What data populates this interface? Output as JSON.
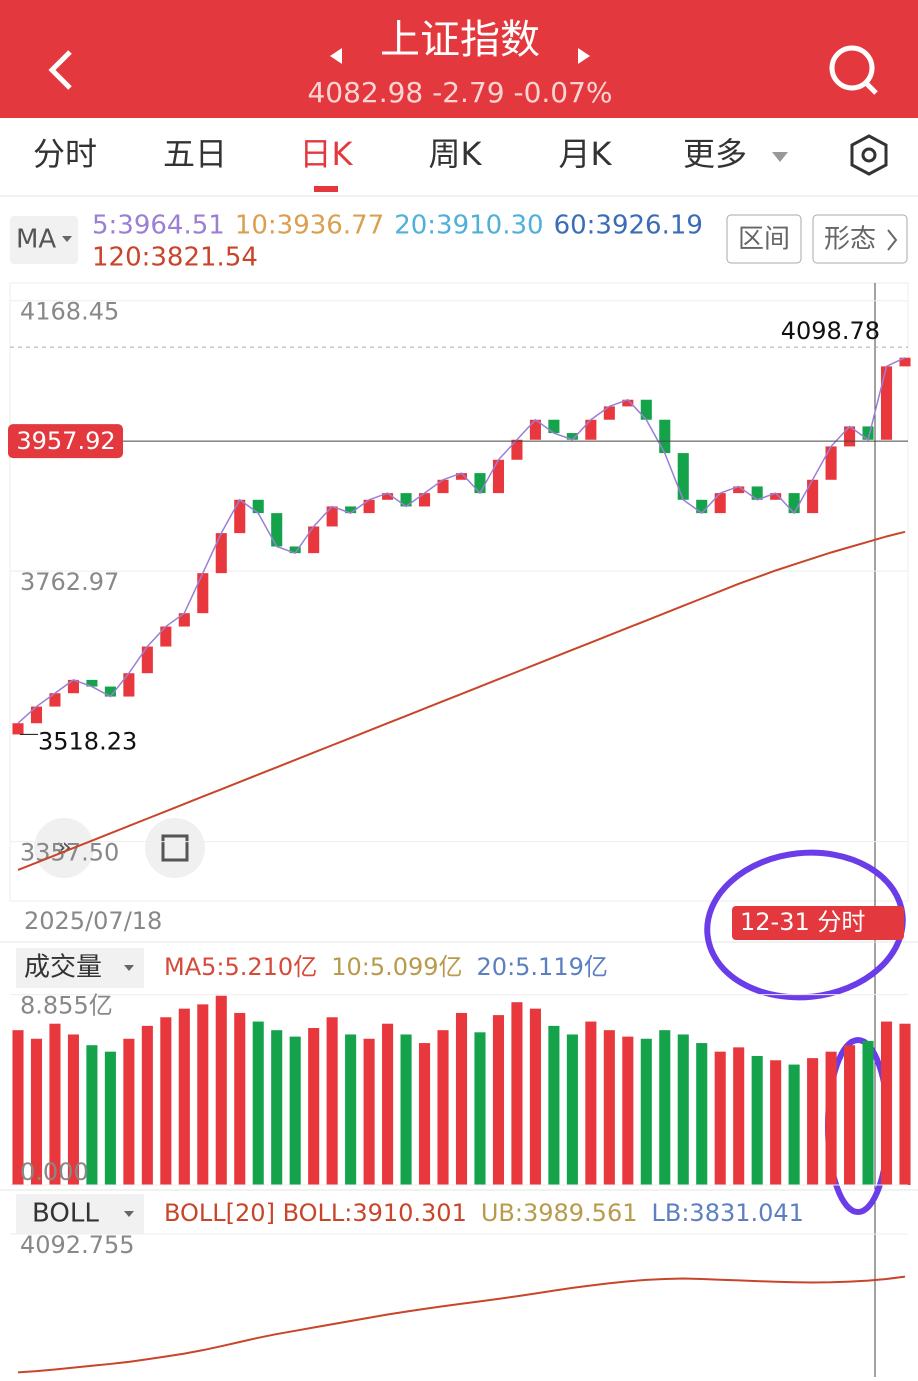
{
  "header": {
    "title": "上证指数",
    "quote": "4082.98 -2.79 -0.07%"
  },
  "tabs": [
    "分时",
    "五日",
    "日K",
    "周K",
    "月K",
    "更多"
  ],
  "active_tab": 2,
  "ma_selector": "MA",
  "ma_legend": [
    {
      "text": "5:3964.51",
      "color": "#9b7fd4"
    },
    {
      "text": "10:3936.77",
      "color": "#d9a050"
    },
    {
      "text": "20:3910.30",
      "color": "#4fb0d8"
    },
    {
      "text": "60:3926.19",
      "color": "#3a6db5"
    },
    {
      "text": "120:3821.54",
      "color": "#c8452a"
    }
  ],
  "buttons": [
    "区间",
    "形态"
  ],
  "chart_data": [
    {
      "type": "candlestick",
      "up_color": "#e8383d",
      "down_color": "#14a34a",
      "values": [
        3535,
        3560,
        3580,
        3600,
        3590,
        3575,
        3610,
        3650,
        3680,
        3700,
        3760,
        3820,
        3870,
        3850,
        3800,
        3790,
        3830,
        3860,
        3850,
        3870,
        3880,
        3860,
        3880,
        3900,
        3910,
        3880,
        3930,
        3960,
        3990,
        3970,
        3960,
        3990,
        4010,
        4020,
        3990,
        3940,
        3870,
        3850,
        3880,
        3890,
        3870,
        3880,
        3850,
        3900,
        3950,
        3980,
        3960,
        4070,
        4083
      ],
      "ma120": [
        3315,
        3326,
        3337,
        3348,
        3359,
        3370,
        3381,
        3392,
        3403,
        3414,
        3425,
        3436,
        3447,
        3458,
        3469,
        3480,
        3491,
        3502,
        3513,
        3524,
        3535,
        3546,
        3557,
        3568,
        3579,
        3590,
        3601,
        3612,
        3623,
        3634,
        3645,
        3656,
        3667,
        3678,
        3689,
        3700,
        3711,
        3722,
        3733,
        3744,
        3754,
        3764,
        3773,
        3782,
        3791,
        3799,
        3807,
        3815,
        3822
      ],
      "ma120_color": "#c8452a",
      "ylim": [
        3270,
        4195
      ],
      "yticks": [
        4168.45,
        3762.97,
        {
          "value": 3357.5,
          "label": "3357.50"
        }
      ],
      "crosshair": {
        "value": 3957.92,
        "label": "3957.92"
      },
      "high": {
        "value": 4098.78,
        "label": "4098.78"
      },
      "low": {
        "value": 3518.23,
        "label": "3518.23"
      },
      "start_date": "2025/07/18",
      "badge": "12-31 分时"
    },
    {
      "type": "bar",
      "title": "成交量",
      "legend": [
        {
          "text": "MA5:5.210亿",
          "color": "#d64a3a"
        },
        {
          "text": "10:5.099亿",
          "color": "#b89a4a"
        },
        {
          "text": "20:5.119亿",
          "color": "#5b7fc0"
        }
      ],
      "values": [
        7.2,
        6.8,
        7.5,
        7.0,
        6.5,
        6.2,
        6.8,
        7.4,
        7.8,
        8.2,
        8.4,
        8.8,
        8.0,
        7.6,
        7.2,
        6.9,
        7.3,
        7.8,
        7.0,
        6.8,
        7.5,
        7.0,
        6.6,
        7.2,
        8.0,
        7.1,
        7.9,
        8.5,
        8.2,
        7.4,
        7.0,
        7.6,
        7.2,
        6.9,
        6.8,
        7.2,
        7.0,
        6.6,
        6.2,
        6.4,
        6.0,
        5.8,
        5.6,
        5.9,
        6.2,
        6.5,
        6.7,
        7.6,
        7.5
      ],
      "ylim": [
        0,
        9.3
      ],
      "yticks": [
        {
          "value": 8.855,
          "label": "8.855亿"
        },
        {
          "value": 0,
          "label": "0.000"
        }
      ]
    },
    {
      "type": "line",
      "title": "BOLL",
      "legend": [
        {
          "text": "BOLL[20] BOLL:3910.301",
          "color": "#c8452a"
        },
        {
          "text": "UB:3989.561",
          "color": "#b89a4a"
        },
        {
          "text": "LB:3831.041",
          "color": "#5b7fc0"
        }
      ],
      "color": "#c8452a",
      "values": [
        3500,
        3505,
        3512,
        3520,
        3528,
        3536,
        3545,
        3556,
        3568,
        3580,
        3595,
        3612,
        3630,
        3648,
        3664,
        3678,
        3692,
        3706,
        3720,
        3734,
        3748,
        3760,
        3772,
        3783,
        3794,
        3804,
        3815,
        3826,
        3838,
        3850,
        3862,
        3872,
        3882,
        3890,
        3896,
        3900,
        3902,
        3900,
        3897,
        3894,
        3891,
        3888,
        3886,
        3885,
        3886,
        3889,
        3893,
        3900,
        3910
      ],
      "ylim": [
        3480,
        4110
      ],
      "yticks": [
        {
          "value": 4092.755,
          "label": "4092.755"
        }
      ]
    }
  ]
}
